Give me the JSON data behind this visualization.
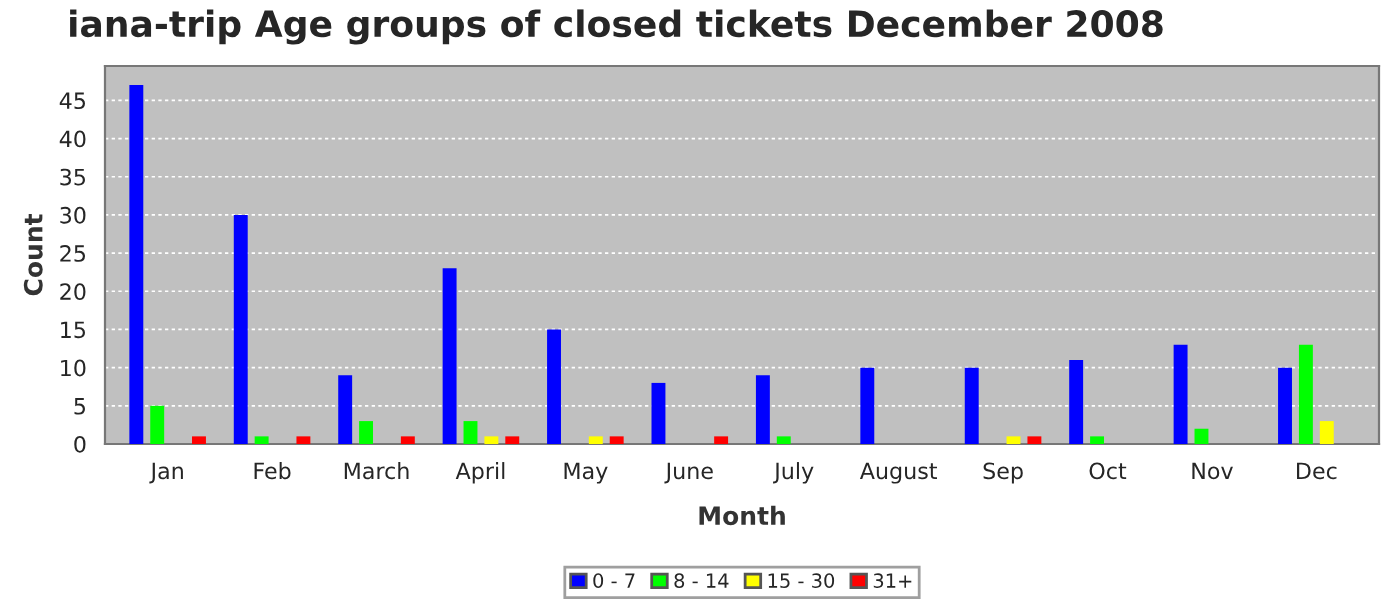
{
  "chart_data": {
    "type": "bar",
    "title": "iana-trip Age groups of closed tickets December 2008",
    "xlabel": "Month",
    "ylabel": "Count",
    "categories": [
      "Jan",
      "Feb",
      "March",
      "April",
      "May",
      "June",
      "July",
      "August",
      "Sep",
      "Oct",
      "Nov",
      "Dec"
    ],
    "series": [
      {
        "name": "0 - 7",
        "color": "#0000ff",
        "values": [
          47,
          30,
          9,
          23,
          15,
          8,
          9,
          10,
          10,
          11,
          13,
          10
        ]
      },
      {
        "name": "8 - 14",
        "color": "#00ff00",
        "values": [
          5,
          1,
          3,
          3,
          0,
          0,
          1,
          0,
          0,
          1,
          2,
          13
        ]
      },
      {
        "name": "15 - 30",
        "color": "#ffff00",
        "values": [
          0,
          0,
          0,
          1,
          1,
          0,
          0,
          0,
          1,
          0,
          0,
          3
        ]
      },
      {
        "name": "31+",
        "color": "#ff0000",
        "values": [
          1,
          1,
          1,
          1,
          1,
          1,
          0,
          0,
          1,
          0,
          0,
          0
        ]
      }
    ],
    "ylim": [
      0,
      49.5
    ],
    "yticks": [
      0,
      5,
      10,
      15,
      20,
      25,
      30,
      35,
      40,
      45
    ],
    "grid": "y",
    "legend": "bottom"
  }
}
